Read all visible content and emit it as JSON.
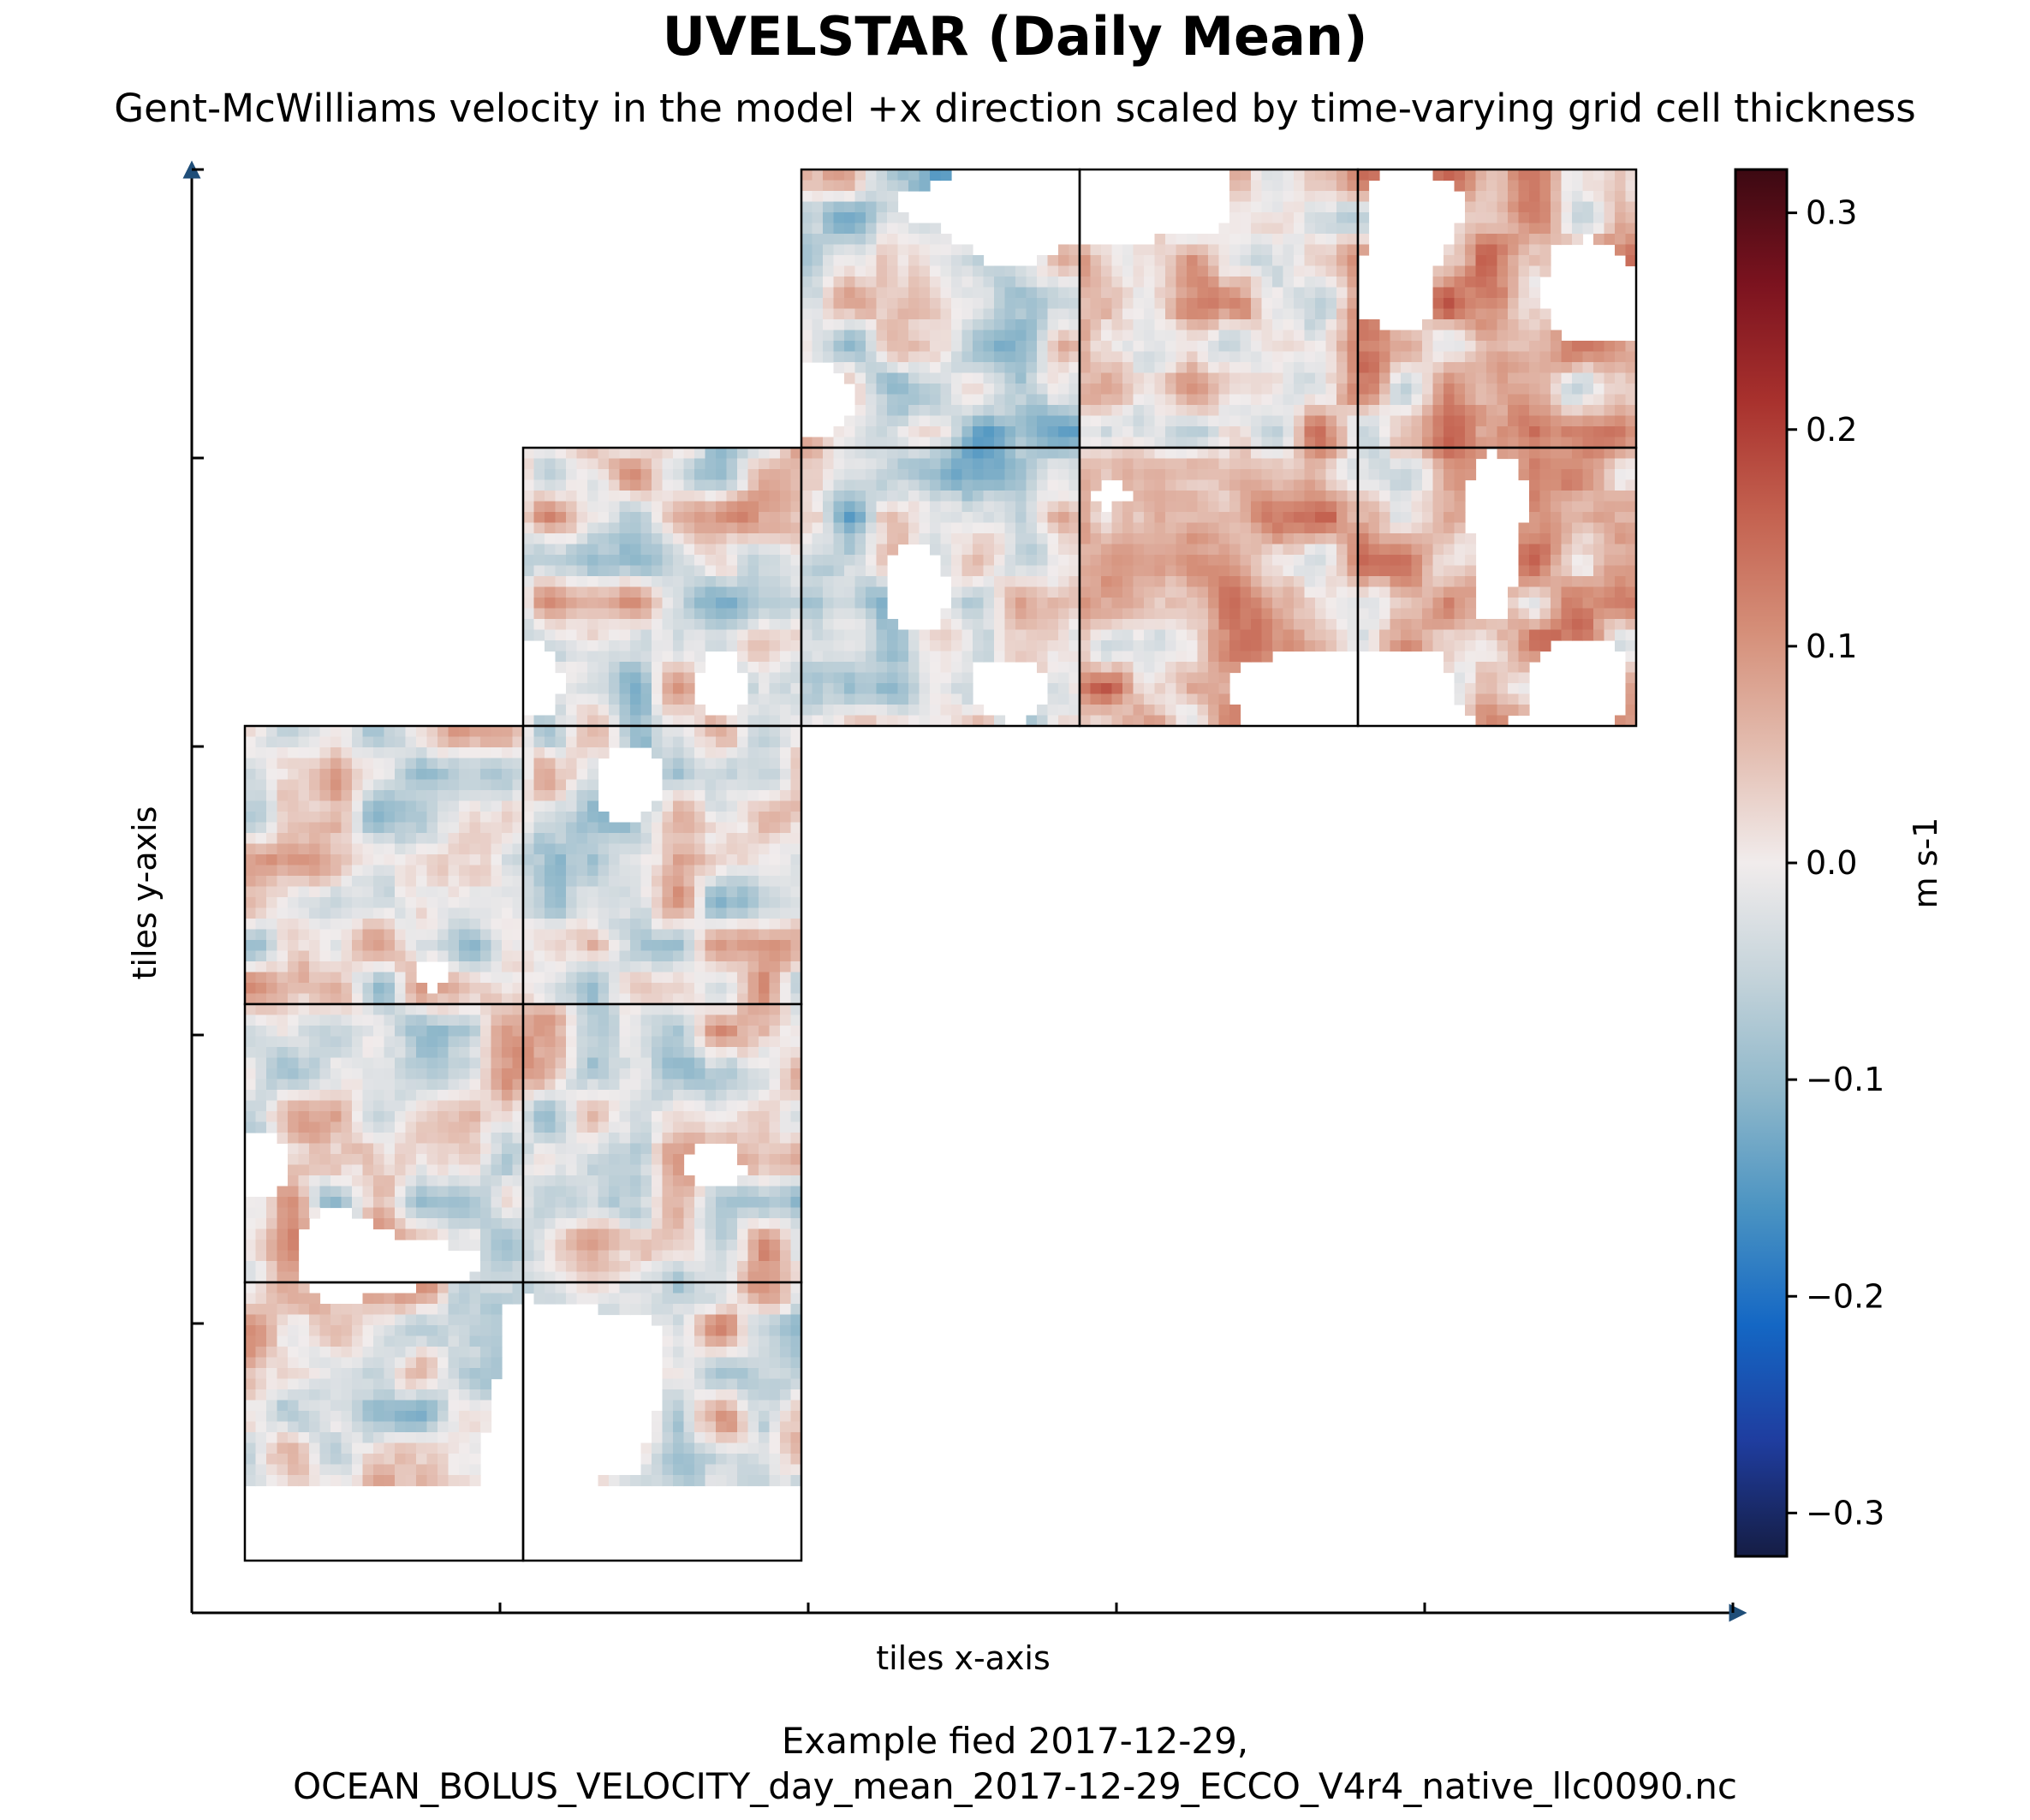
{
  "title": "UVELSTAR (Daily Mean)",
  "subtitle": "Gent-McWilliams velocity in the model +x direction scaled by time-varying grid cell thickness",
  "caption": {
    "line1": "Example fied 2017-12-29,",
    "line2": "OCEAN_BOLUS_VELOCITY_day_mean_2017-12-29_ECCO_V4r4_native_llc0090.nc"
  },
  "chart_data": {
    "type": "heatmap",
    "title": "UVELSTAR (Daily Mean)",
    "subtitle": "Gent-McWilliams velocity in the model +x direction scaled by time-varying grid cell thickness",
    "xlabel": "tiles x-axis",
    "ylabel": "tiles y-axis",
    "x_tick_count": 5,
    "y_tick_count": 5,
    "tick_labels_shown": false,
    "tile_grid": {
      "columns": 5,
      "rows": 5,
      "tiles": [
        {
          "col": 2,
          "row": 0
        },
        {
          "col": 3,
          "row": 0
        },
        {
          "col": 4,
          "row": 0
        },
        {
          "col": 1,
          "row": 1
        },
        {
          "col": 2,
          "row": 1
        },
        {
          "col": 3,
          "row": 1
        },
        {
          "col": 4,
          "row": 1
        },
        {
          "col": 0,
          "row": 2
        },
        {
          "col": 1,
          "row": 2
        },
        {
          "col": 0,
          "row": 3
        },
        {
          "col": 1,
          "row": 3
        },
        {
          "col": 0,
          "row": 4
        },
        {
          "col": 1,
          "row": 4
        }
      ]
    },
    "colorbar": {
      "label": "m s-1",
      "vmin": -0.32,
      "vmax": 0.32,
      "ticks": [
        {
          "value": 0.3,
          "label": "0.3"
        },
        {
          "value": 0.2,
          "label": "0.2"
        },
        {
          "value": 0.1,
          "label": "0.1"
        },
        {
          "value": 0.0,
          "label": "0.0"
        },
        {
          "value": -0.1,
          "label": "−0.1"
        },
        {
          "value": -0.2,
          "label": "−0.2"
        },
        {
          "value": -0.3,
          "label": "−0.3"
        }
      ],
      "colormap": "balance",
      "stops": [
        "#151d44",
        "#1f3d9f",
        "#1467c4",
        "#4a93c2",
        "#8eb7ca",
        "#c4d3da",
        "#f1ecec",
        "#e3bcaf",
        "#d58f79",
        "#c46250",
        "#a8312d",
        "#7c131f",
        "#3c0912"
      ]
    },
    "missing_value_color": "#ffffff",
    "grid": false
  }
}
